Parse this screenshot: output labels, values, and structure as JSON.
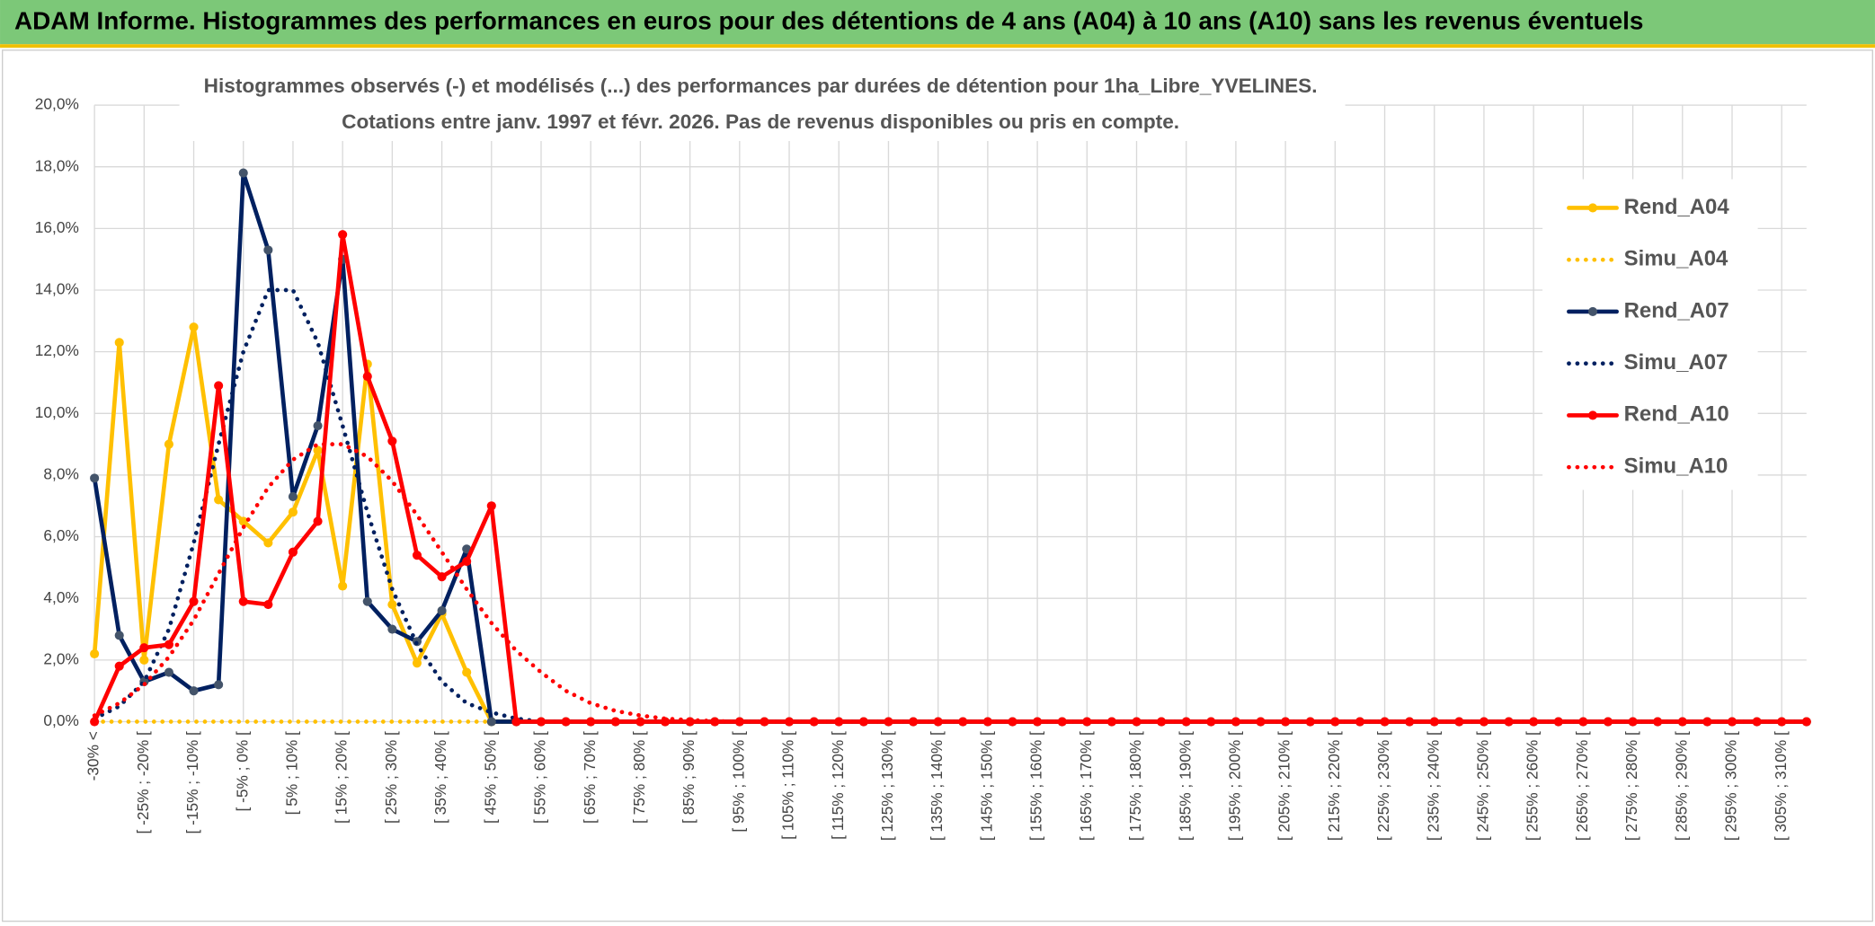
{
  "header": {
    "title": "ADAM Informe. Histogrammes des performances en euros pour des détentions de 4 ans (A04) à 10 ans (A10) sans les revenus éventuels"
  },
  "chart_data": {
    "type": "line",
    "title": "Histogrammes observés (-) et modélisés (...) des performances par durées de détention pour 1ha_Libre_YVELINES.",
    "subtitle": "Cotations entre janv. 1997 et févr. 2026. Pas de revenus disponibles ou pris en compte.",
    "categories": [
      "-30% <",
      null,
      "[ -25% ; -20% [",
      null,
      "[ -15% ; -10% [",
      null,
      "[ -5% ; 0% [",
      null,
      "[ 5% ; 10% [",
      null,
      "[ 15% ; 20% [",
      null,
      "[ 25% ; 30% [",
      null,
      "[ 35% ; 40% [",
      null,
      "[ 45% ; 50% [",
      null,
      "[ 55% ; 60% [",
      null,
      "[ 65% ; 70% [",
      null,
      "[ 75% ; 80% [",
      null,
      "[ 85% ; 90% [",
      null,
      "[ 95% ; 100% [",
      null,
      "[ 105% ; 110% [",
      null,
      "[ 115% ; 120% [",
      null,
      "[ 125% ; 130% [",
      null,
      "[ 135% ; 140% [",
      null,
      "[ 145% ; 150% [",
      null,
      "[ 155% ; 160% [",
      null,
      "[ 165% ; 170% [",
      null,
      "[ 175% ; 180% [",
      null,
      "[ 185% ; 190% [",
      null,
      "[ 195% ; 200% [",
      null,
      "[ 205% ; 210% [",
      null,
      "[ 215% ; 220% [",
      null,
      "[ 225% ; 230% [",
      null,
      "[ 235% ; 240% [",
      null,
      "[ 245% ; 250% [",
      null,
      "[ 255% ; 260% [",
      null,
      "[ 265% ; 270% [",
      null,
      "[ 275% ; 280% [",
      null,
      "[ 285% ; 290% [",
      null,
      "[ 295% ; 300% [",
      null,
      "[ 305% ; 310% [",
      null
    ],
    "series": [
      {
        "name": "Rend_A04",
        "color": "#FFC000",
        "style": "solid",
        "marker_color": "#FFC000",
        "values": [
          2.2,
          12.3,
          2.0,
          9.0,
          12.8,
          7.2,
          6.5,
          5.8,
          6.8,
          8.8,
          4.4,
          11.6,
          3.8,
          1.9,
          3.5,
          1.6,
          0,
          0,
          0,
          0,
          0,
          0,
          0,
          0,
          0,
          0,
          0,
          0,
          0,
          0,
          0,
          0,
          0,
          0,
          0,
          0,
          0,
          0,
          0,
          0,
          0,
          0,
          0,
          0,
          0,
          0,
          0,
          0,
          0,
          0,
          0,
          0,
          0,
          0,
          0,
          0,
          0,
          0,
          0,
          0,
          0,
          0,
          0,
          0,
          0,
          0,
          0,
          0,
          0,
          0
        ]
      },
      {
        "name": "Simu_A04",
        "color": "#FFC000",
        "style": "dotted",
        "values": [
          0,
          0,
          0,
          0,
          0,
          0,
          0,
          0,
          0,
          0,
          0,
          0,
          0,
          0,
          0,
          0,
          0,
          0,
          0,
          0,
          0,
          0,
          0,
          0,
          0,
          0,
          0,
          0,
          0,
          0,
          0,
          0,
          0,
          0,
          0,
          0,
          0,
          0,
          0,
          0,
          0,
          0,
          0,
          0,
          0,
          0,
          0,
          0,
          0,
          0,
          0,
          0,
          0,
          0,
          0,
          0,
          0,
          0,
          0,
          0,
          0,
          0,
          0,
          0,
          0,
          0,
          0,
          0,
          0,
          0
        ]
      },
      {
        "name": "Rend_A07",
        "color": "#002060",
        "style": "solid",
        "marker_color": "#44546A",
        "values": [
          7.9,
          2.8,
          1.3,
          1.6,
          1.0,
          1.2,
          17.8,
          15.3,
          7.3,
          9.6,
          15.0,
          3.9,
          3.0,
          2.6,
          3.6,
          5.6,
          0,
          0,
          0,
          0,
          0,
          0,
          0,
          0,
          0,
          0,
          0,
          0,
          0,
          0,
          0,
          0,
          0,
          0,
          0,
          0,
          0,
          0,
          0,
          0,
          0,
          0,
          0,
          0,
          0,
          0,
          0,
          0,
          0,
          0,
          0,
          0,
          0,
          0,
          0,
          0,
          0,
          0,
          0,
          0,
          0,
          0,
          0,
          0,
          0,
          0,
          0,
          0,
          0,
          0
        ]
      },
      {
        "name": "Simu_A07",
        "color": "#002060",
        "style": "dotted",
        "values": [
          0.1,
          0.5,
          1.3,
          3.0,
          5.8,
          9.0,
          12.0,
          14.0,
          14.0,
          12.3,
          9.6,
          6.8,
          4.3,
          2.5,
          1.3,
          0.6,
          0.3,
          0.1,
          0,
          0,
          0,
          0,
          0,
          0,
          0,
          0,
          0,
          0,
          0,
          0,
          0,
          0,
          0,
          0,
          0,
          0,
          0,
          0,
          0,
          0,
          0,
          0,
          0,
          0,
          0,
          0,
          0,
          0,
          0,
          0,
          0,
          0,
          0,
          0,
          0,
          0,
          0,
          0,
          0,
          0,
          0,
          0,
          0,
          0,
          0,
          0,
          0,
          0,
          0,
          0
        ]
      },
      {
        "name": "Rend_A10",
        "color": "#FF0000",
        "style": "solid",
        "marker_color": "#FF0000",
        "values": [
          0,
          1.8,
          2.4,
          2.5,
          3.9,
          10.9,
          3.9,
          3.8,
          5.5,
          6.5,
          15.8,
          11.2,
          9.1,
          5.4,
          4.7,
          5.2,
          7.0,
          0,
          0,
          0,
          0,
          0,
          0,
          0,
          0,
          0,
          0,
          0,
          0,
          0,
          0,
          0,
          0,
          0,
          0,
          0,
          0,
          0,
          0,
          0,
          0,
          0,
          0,
          0,
          0,
          0,
          0,
          0,
          0,
          0,
          0,
          0,
          0,
          0,
          0,
          0,
          0,
          0,
          0,
          0,
          0,
          0,
          0,
          0,
          0,
          0,
          0,
          0,
          0,
          0
        ]
      },
      {
        "name": "Simu_A10",
        "color": "#FF0000",
        "style": "dotted",
        "values": [
          0.2,
          0.6,
          1.2,
          2.1,
          3.3,
          4.8,
          6.3,
          7.6,
          8.5,
          9.0,
          9.0,
          8.6,
          7.8,
          6.7,
          5.5,
          4.3,
          3.2,
          2.3,
          1.6,
          1.0,
          0.6,
          0.35,
          0.2,
          0.1,
          0.05,
          0.02,
          0,
          0,
          0,
          0,
          0,
          0,
          0,
          0,
          0,
          0,
          0,
          0,
          0,
          0,
          0,
          0,
          0,
          0,
          0,
          0,
          0,
          0,
          0,
          0,
          0,
          0,
          0,
          0,
          0,
          0,
          0,
          0,
          0,
          0,
          0,
          0,
          0,
          0,
          0,
          0,
          0,
          0,
          0,
          0
        ]
      }
    ],
    "ylim": [
      0,
      20
    ],
    "yticks": [
      {
        "value": 0,
        "label": "0,0%"
      },
      {
        "value": 2,
        "label": "2,0%"
      },
      {
        "value": 4,
        "label": "4,0%"
      },
      {
        "value": 6,
        "label": "6,0%"
      },
      {
        "value": 8,
        "label": "8,0%"
      },
      {
        "value": 10,
        "label": "10,0%"
      },
      {
        "value": 12,
        "label": "12,0%"
      },
      {
        "value": 14,
        "label": "14,0%"
      },
      {
        "value": 16,
        "label": "16,0%"
      },
      {
        "value": 18,
        "label": "18,0%"
      },
      {
        "value": 20,
        "label": "20,0%"
      }
    ],
    "grid": true,
    "legend": "right"
  }
}
